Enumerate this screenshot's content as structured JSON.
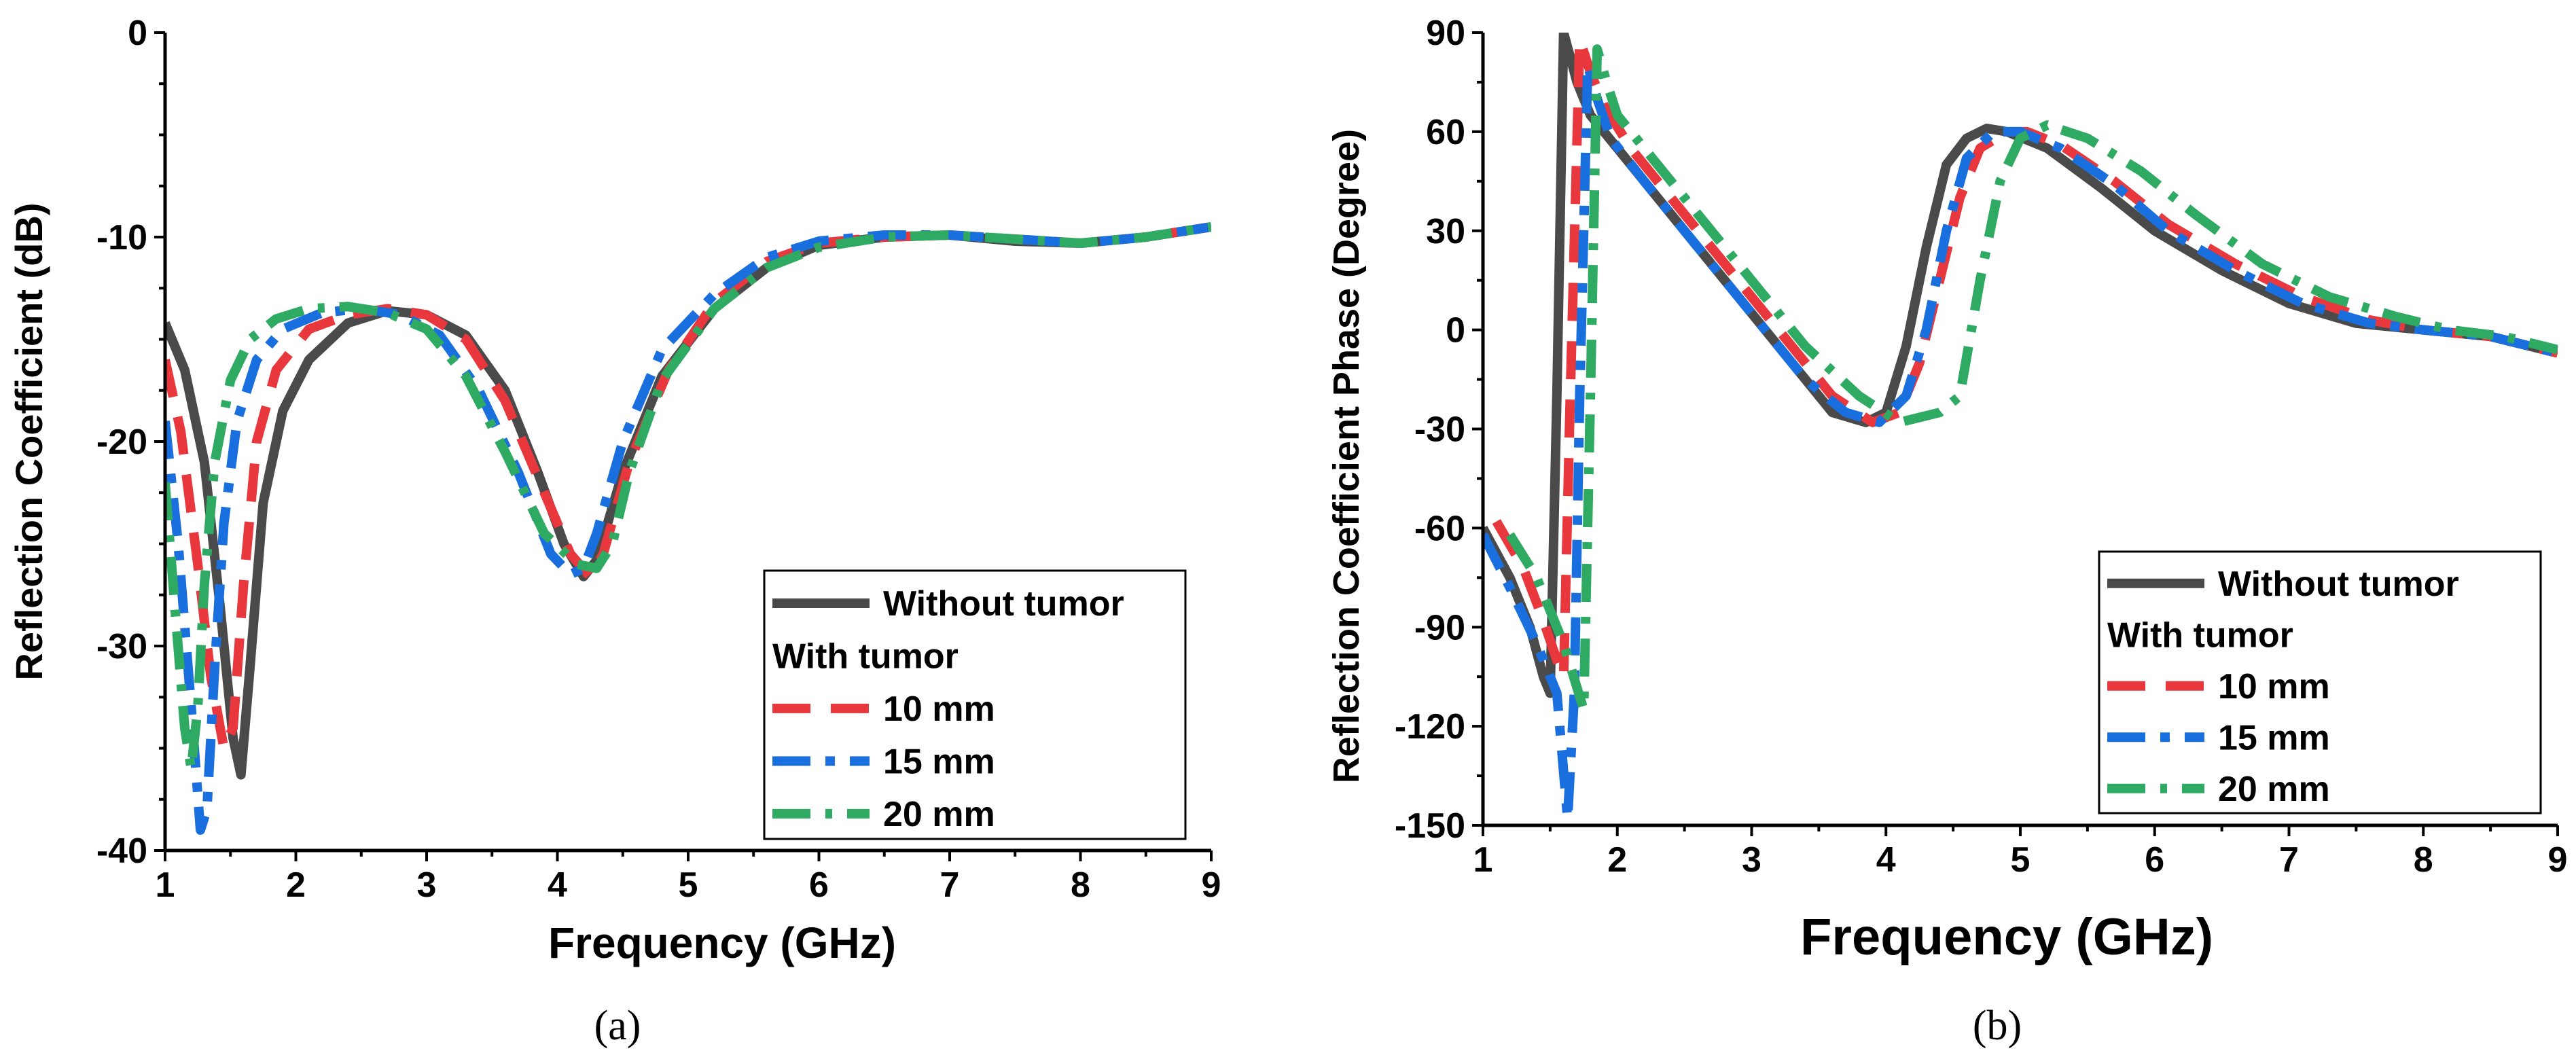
{
  "chart_data": [
    {
      "id": "a",
      "type": "line",
      "caption": "(a)",
      "xlabel": "Frequency (GHz)",
      "ylabel": "Reflection Coefficient (dB)",
      "xlim": [
        1,
        9
      ],
      "ylim": [
        -40,
        0
      ],
      "xticks": [
        1,
        2,
        3,
        4,
        5,
        6,
        7,
        8,
        9
      ],
      "xtick_labels": [
        "1",
        "2",
        "3",
        "4",
        "5",
        "6",
        "7",
        "8",
        "9"
      ],
      "yticks": [
        -40,
        -30,
        -20,
        -10,
        0
      ],
      "ytick_labels": [
        "-40",
        "-30",
        "-20",
        "-10",
        "0"
      ],
      "legend": {
        "position": "bottom-right",
        "header": "With tumor",
        "entries": [
          "Without tumor",
          "10 mm",
          "15 mm",
          "20 mm"
        ]
      },
      "series": [
        {
          "name": "Without tumor",
          "color": "#4a4a4a",
          "dash": "solid",
          "x": [
            1.0,
            1.15,
            1.3,
            1.42,
            1.52,
            1.58,
            1.65,
            1.75,
            1.9,
            2.1,
            2.4,
            2.7,
            3.0,
            3.3,
            3.6,
            3.85,
            4.05,
            4.2,
            4.3,
            4.5,
            4.8,
            5.2,
            5.6,
            6.0,
            6.5,
            7.0,
            7.5,
            8.0,
            8.5,
            9.0
          ],
          "values": [
            -14.2,
            -16.5,
            -21.0,
            -28.0,
            -34.5,
            -36.3,
            -31.0,
            -23.0,
            -18.5,
            -16.0,
            -14.2,
            -13.6,
            -13.8,
            -14.8,
            -17.5,
            -21.5,
            -25.0,
            -26.6,
            -25.8,
            -21.5,
            -16.8,
            -13.5,
            -11.5,
            -10.4,
            -10.0,
            -9.9,
            -10.2,
            -10.3,
            -10.0,
            -9.5
          ]
        },
        {
          "name": "10 mm",
          "color": "#e8383d",
          "dash": "56 30",
          "x": [
            1.0,
            1.12,
            1.25,
            1.35,
            1.45,
            1.52,
            1.6,
            1.7,
            1.85,
            2.1,
            2.4,
            2.7,
            3.0,
            3.3,
            3.6,
            3.9,
            4.1,
            4.25,
            4.35,
            4.55,
            4.85,
            5.2,
            5.6,
            6.0,
            6.5,
            7.0,
            7.5,
            8.0,
            8.5,
            9.0
          ],
          "values": [
            -16.0,
            -19.5,
            -26.0,
            -31.5,
            -35.0,
            -34.0,
            -27.0,
            -20.0,
            -16.5,
            -14.5,
            -13.8,
            -13.5,
            -13.8,
            -15.0,
            -18.0,
            -22.5,
            -25.5,
            -26.6,
            -25.5,
            -21.0,
            -16.5,
            -13.2,
            -11.2,
            -10.3,
            -10.0,
            -9.9,
            -10.1,
            -10.3,
            -10.0,
            -9.5
          ]
        },
        {
          "name": "15 mm",
          "color": "#1a6fdf",
          "dash": "56 22 14 22",
          "x": [
            1.0,
            1.1,
            1.2,
            1.27,
            1.32,
            1.38,
            1.45,
            1.55,
            1.7,
            1.9,
            2.2,
            2.5,
            2.8,
            3.1,
            3.4,
            3.7,
            3.95,
            4.1,
            4.2,
            4.3,
            4.5,
            4.8,
            5.2,
            5.6,
            6.0,
            6.5,
            7.0,
            7.5,
            8.0,
            8.5,
            9.0
          ],
          "values": [
            -19.0,
            -25.0,
            -33.0,
            -39.0,
            -38.0,
            -31.0,
            -24.0,
            -19.0,
            -16.0,
            -14.5,
            -13.7,
            -13.5,
            -13.8,
            -14.8,
            -17.5,
            -21.5,
            -25.5,
            -26.5,
            -26.2,
            -24.5,
            -20.0,
            -15.5,
            -12.8,
            -11.0,
            -10.2,
            -9.9,
            -9.9,
            -10.1,
            -10.3,
            -10.0,
            -9.5
          ]
        },
        {
          "name": "20 mm",
          "color": "#2eaa63",
          "dash": "56 22 10 22",
          "x": [
            1.0,
            1.08,
            1.15,
            1.2,
            1.25,
            1.3,
            1.38,
            1.5,
            1.65,
            1.85,
            2.1,
            2.4,
            2.7,
            3.0,
            3.3,
            3.6,
            3.9,
            4.15,
            4.3,
            4.42,
            4.55,
            4.8,
            5.2,
            5.6,
            6.0,
            6.5,
            7.0,
            7.5,
            8.0,
            8.5,
            9.0
          ],
          "values": [
            -22.0,
            -28.5,
            -34.0,
            -36.0,
            -33.0,
            -27.0,
            -21.0,
            -17.0,
            -15.0,
            -14.0,
            -13.5,
            -13.4,
            -13.7,
            -14.5,
            -16.8,
            -20.5,
            -24.5,
            -26.0,
            -26.2,
            -25.0,
            -21.5,
            -17.0,
            -13.5,
            -11.5,
            -10.5,
            -10.0,
            -9.9,
            -10.1,
            -10.3,
            -10.0,
            -9.5
          ]
        }
      ]
    },
    {
      "id": "b",
      "type": "line",
      "caption": "(b)",
      "xlabel": "Frequency (GHz)",
      "ylabel": "Reflection Coefficient Phase (Degree)",
      "xlim": [
        1,
        9
      ],
      "ylim": [
        -150,
        90
      ],
      "xticks": [
        1,
        2,
        3,
        4,
        5,
        6,
        7,
        8,
        9
      ],
      "xtick_labels": [
        "1",
        "2",
        "3",
        "4",
        "5",
        "6",
        "7",
        "8",
        "9"
      ],
      "yticks": [
        -150,
        -120,
        -90,
        -60,
        -30,
        0,
        30,
        60,
        90
      ],
      "ytick_labels": [
        "-150",
        "-120",
        "-90",
        "-60",
        "-30",
        "0",
        "30",
        "60",
        "90"
      ],
      "legend": {
        "position": "bottom-right",
        "header": "With tumor",
        "entries": [
          "Without tumor",
          "10 mm",
          "15 mm",
          "20 mm"
        ]
      },
      "series": [
        {
          "name": "Without tumor",
          "color": "#4a4a4a",
          "dash": "solid",
          "x": [
            1.0,
            1.2,
            1.35,
            1.45,
            1.5,
            1.55,
            1.6,
            1.7,
            1.8,
            2.0,
            2.4,
            2.8,
            3.2,
            3.6,
            3.85,
            4.0,
            4.15,
            4.3,
            4.45,
            4.6,
            4.75,
            4.9,
            5.2,
            5.6,
            6.0,
            6.5,
            7.0,
            7.5,
            8.0,
            8.5,
            9.0
          ],
          "values": [
            -60,
            -75,
            -90,
            -105,
            -110,
            -20,
            90,
            75,
            65,
            55,
            35,
            15,
            -5,
            -25,
            -28,
            -25,
            -5,
            25,
            50,
            58,
            61,
            60,
            55,
            43,
            30,
            18,
            8,
            2,
            0,
            -2,
            -7
          ]
        },
        {
          "name": "10 mm",
          "color": "#e8383d",
          "dash": "56 30",
          "x": [
            1.1,
            1.3,
            1.45,
            1.55,
            1.6,
            1.65,
            1.72,
            1.8,
            1.9,
            2.1,
            2.5,
            2.9,
            3.3,
            3.6,
            3.9,
            4.1,
            4.25,
            4.4,
            4.55,
            4.7,
            4.9,
            5.05,
            5.3,
            5.7,
            6.1,
            6.6,
            7.1,
            7.6,
            8.0,
            8.5,
            9.0
          ],
          "values": [
            -58,
            -72,
            -88,
            -100,
            -105,
            -20,
            88,
            78,
            68,
            55,
            35,
            15,
            -5,
            -20,
            -28,
            -25,
            -10,
            15,
            40,
            55,
            60,
            60,
            56,
            45,
            32,
            20,
            10,
            3,
            0,
            -2,
            -7
          ]
        },
        {
          "name": "15 mm",
          "color": "#1a6fdf",
          "dash": "56 22 14 22",
          "x": [
            1.0,
            1.2,
            1.4,
            1.55,
            1.63,
            1.68,
            1.72,
            1.78,
            1.85,
            1.95,
            2.2,
            2.6,
            3.0,
            3.4,
            3.7,
            3.95,
            4.15,
            4.3,
            4.45,
            4.6,
            4.8,
            5.0,
            5.3,
            5.7,
            6.1,
            6.6,
            7.1,
            7.6,
            8.0,
            8.5,
            9.0
          ],
          "values": [
            -62,
            -78,
            -95,
            -110,
            -148,
            -110,
            -20,
            80,
            70,
            58,
            45,
            25,
            5,
            -15,
            -25,
            -28,
            -20,
            0,
            30,
            52,
            60,
            60,
            55,
            44,
            30,
            18,
            8,
            2,
            0,
            -2,
            -7
          ]
        },
        {
          "name": "20 mm",
          "color": "#2eaa63",
          "dash": "56 22 10 22",
          "x": [
            1.2,
            1.4,
            1.6,
            1.75,
            1.8,
            1.85,
            1.92,
            2.0,
            2.2,
            2.6,
            3.0,
            3.4,
            3.8,
            4.1,
            4.4,
            4.55,
            4.7,
            4.85,
            5.0,
            5.2,
            5.5,
            5.9,
            6.3,
            6.8,
            7.3,
            7.8,
            8.2,
            8.6,
            9.0
          ],
          "values": [
            -62,
            -75,
            -95,
            -115,
            -20,
            85,
            75,
            65,
            55,
            35,
            15,
            -5,
            -20,
            -28,
            -25,
            -20,
            15,
            45,
            58,
            62,
            58,
            48,
            35,
            20,
            10,
            4,
            0,
            -2,
            -6
          ]
        }
      ]
    }
  ]
}
